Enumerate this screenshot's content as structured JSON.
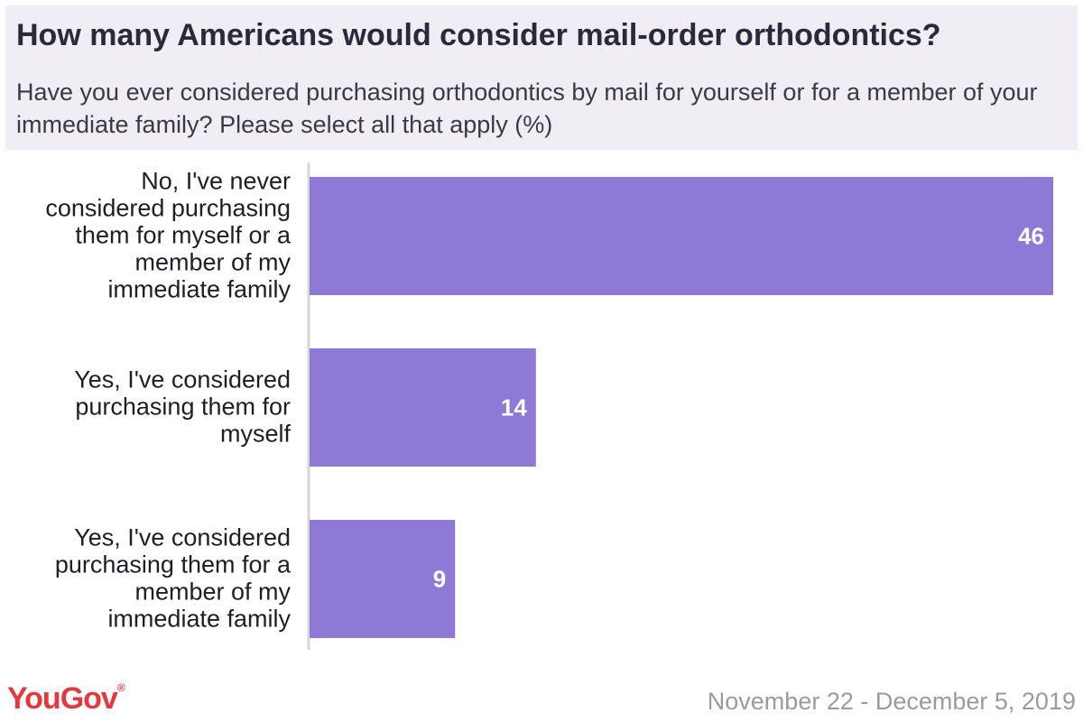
{
  "header": {
    "title": "How many Americans would consider mail-order orthodontics?",
    "subtitle": "Have you ever considered purchasing orthodontics by mail for yourself or for a member of your immediate family? Please select all that apply (%)"
  },
  "footer": {
    "logo_text": "YouGov",
    "logo_mark": "®",
    "date_range": "November 22 - December 5, 2019"
  },
  "colors": {
    "bar": "#8e79d6",
    "header_bg": "#f0edf5",
    "axis": "#d6d6d6",
    "logo": "#e8363f"
  },
  "chart_data": {
    "type": "bar",
    "orientation": "horizontal",
    "categories": [
      [
        "No, I've never",
        "considered purchasing",
        "them for myself or a",
        "member of my",
        "immediate family"
      ],
      [
        "Yes, I've considered",
        "purchasing them for",
        "myself"
      ],
      [
        "Yes, I've considered",
        "purchasing them for a",
        "member of my",
        "immediate family"
      ]
    ],
    "values": [
      46,
      14,
      9
    ],
    "value_labels": [
      "46",
      "14",
      "9"
    ],
    "xlim": [
      0,
      46
    ],
    "grid": false,
    "legend": "none"
  }
}
